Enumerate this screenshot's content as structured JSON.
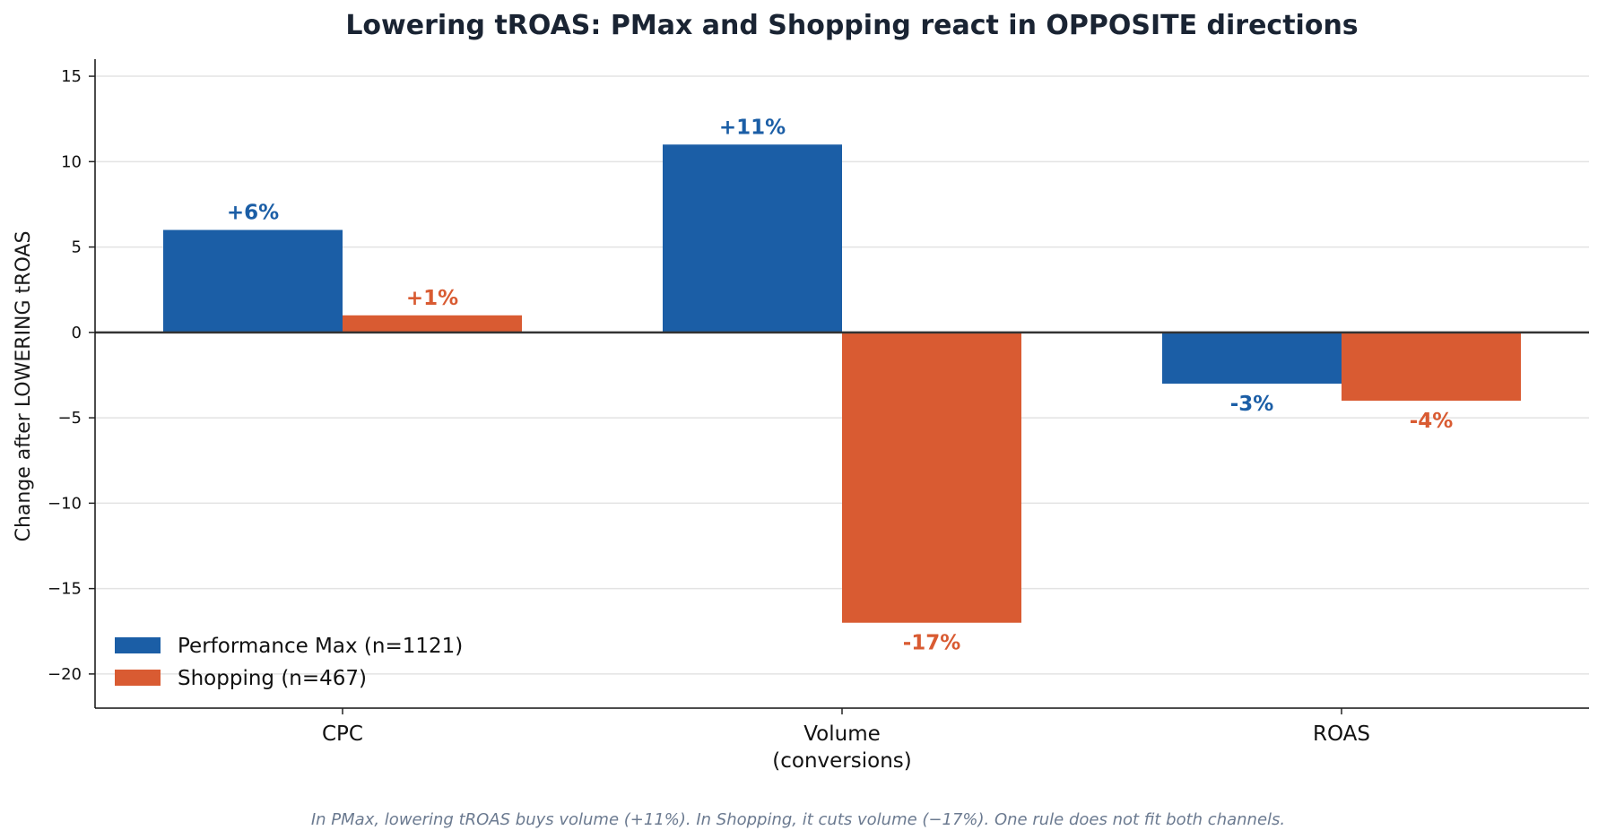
{
  "chart_data": {
    "type": "bar",
    "title": "Lowering tROAS: PMax and Shopping react in OPPOSITE directions",
    "xlabel": "",
    "ylabel": "Change after LOWERING tROAS",
    "categories": [
      [
        "CPC"
      ],
      [
        "Volume",
        "(conversions)"
      ],
      [
        "ROAS"
      ]
    ],
    "ylim": [
      -22,
      16
    ],
    "yticks": [
      15,
      10,
      5,
      0,
      -5,
      -10,
      -15,
      -20
    ],
    "ytick_labels": [
      "15",
      "10",
      "5",
      "0",
      "−5",
      "−10",
      "−15",
      "−20"
    ],
    "grid": "horizontal",
    "legend_position": "lower-left",
    "series": [
      {
        "name": "Performance Max (n=1121)",
        "color": "#1b5ea6",
        "values": [
          6,
          11,
          -3
        ],
        "labels": [
          "+6%",
          "+11%",
          "-3%"
        ]
      },
      {
        "name": "Shopping (n=467)",
        "color": "#d95b32",
        "values": [
          1,
          -17,
          -4
        ],
        "labels": [
          "+1%",
          "-17%",
          "-4%"
        ]
      }
    ],
    "footnote": "In PMax, lowering tROAS buys volume (+11%). In Shopping, it cuts volume (−17%). One rule does not fit both channels."
  }
}
